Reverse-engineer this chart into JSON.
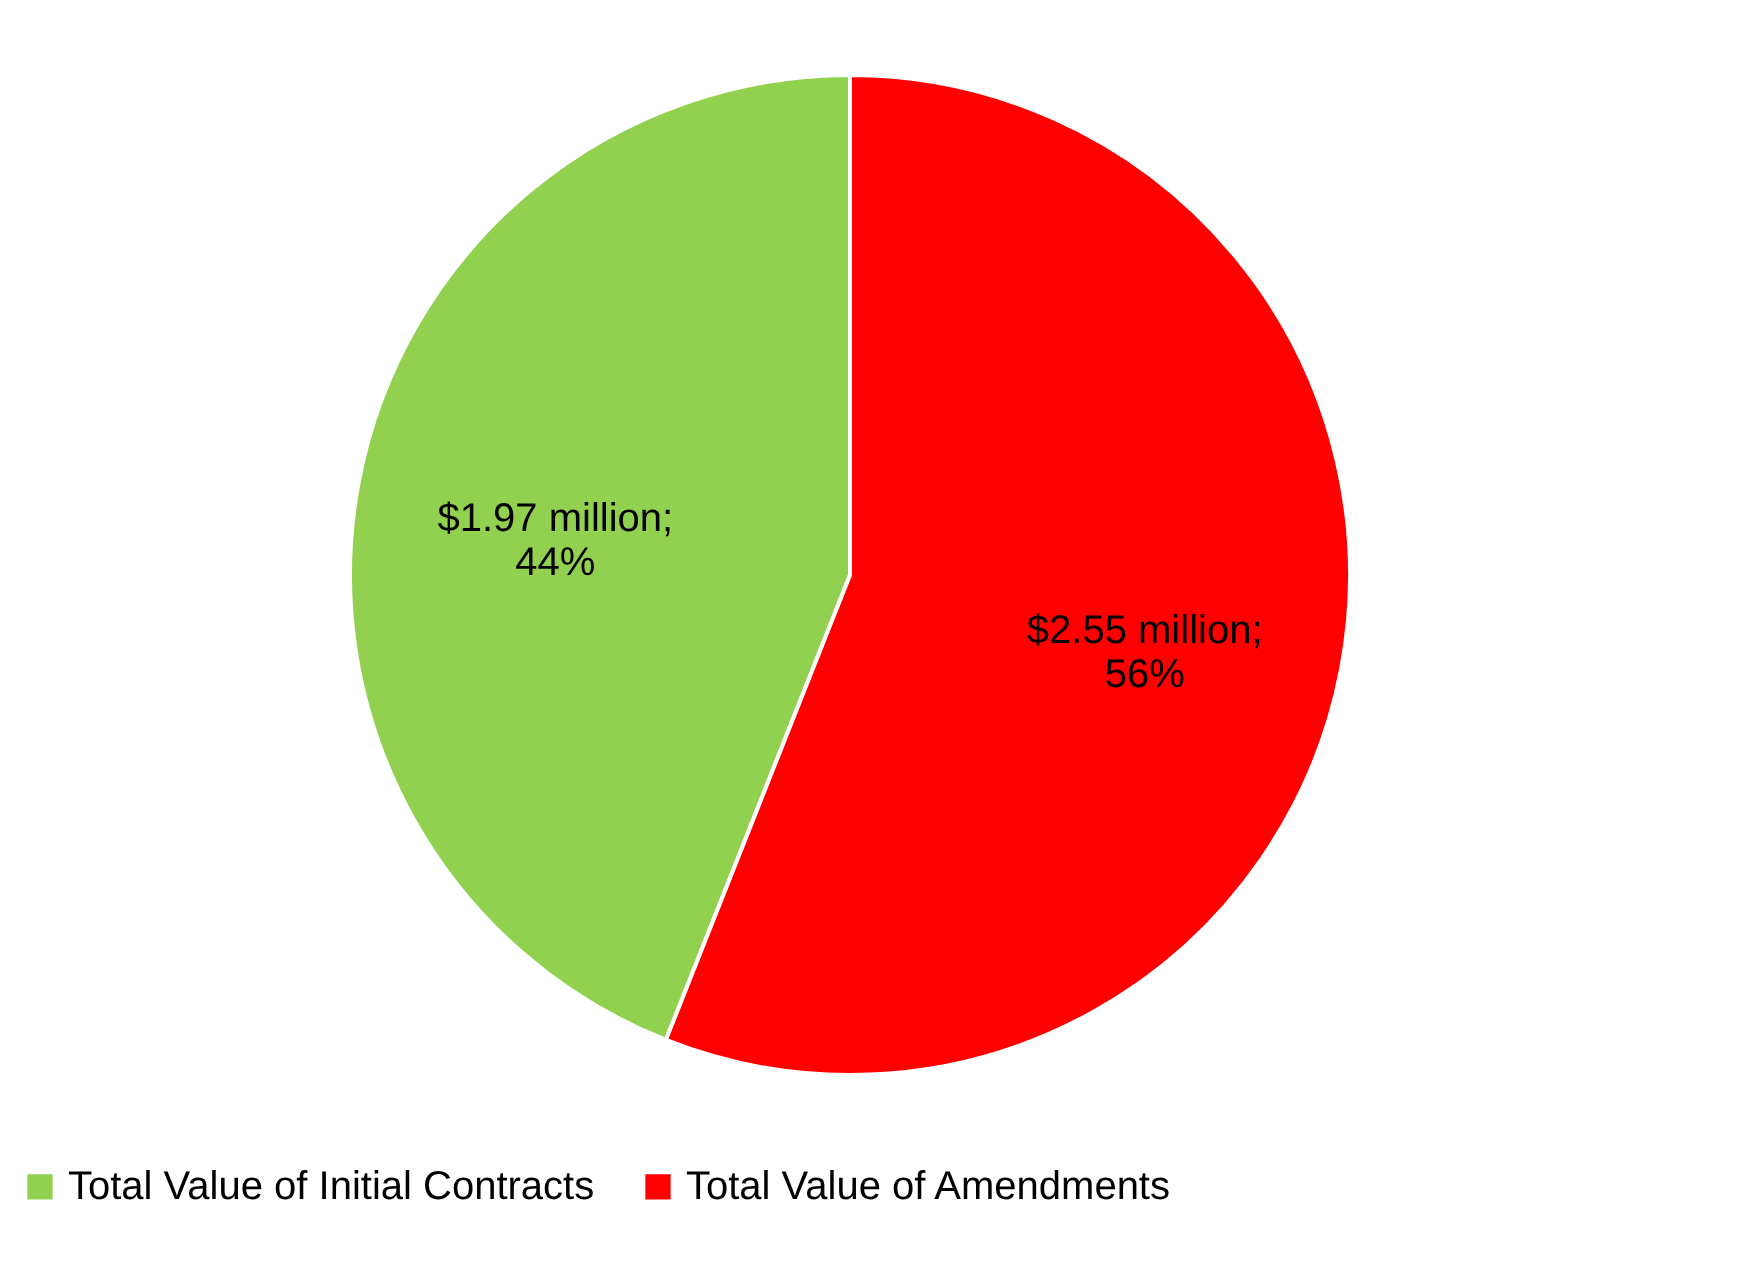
{
  "chart_data": {
    "type": "pie",
    "categories": [
      "Total Value of Initial Contracts",
      "Total Value of Amendments"
    ],
    "values": [
      44,
      56
    ],
    "colors": [
      "#92d050",
      "#ff0000"
    ],
    "value_labels": [
      "$1.97 million;\n44%",
      "$2.55 million;\n56%"
    ],
    "legend": "bottom"
  }
}
